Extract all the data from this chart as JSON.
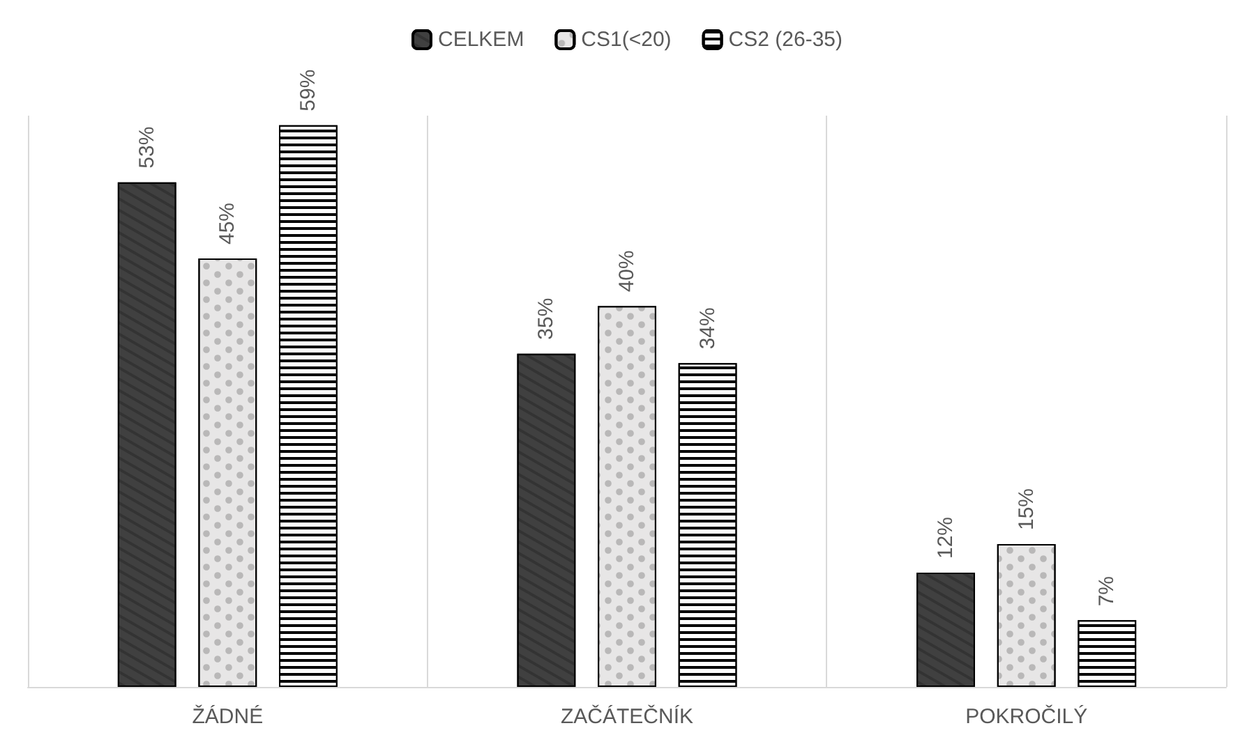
{
  "chart_data": {
    "type": "bar",
    "categories": [
      "ŽÁDNÉ",
      "ZAČÁTEČNÍK",
      "POKROČILÝ"
    ],
    "series": [
      {
        "name": "CELKEM",
        "color": "#404040",
        "values": [
          53,
          35,
          12
        ],
        "value_labels": [
          "53%",
          "35%",
          "12%"
        ]
      },
      {
        "name": "CS1(<20)",
        "color": "#e7e6e6",
        "values": [
          45,
          40,
          15
        ],
        "value_labels": [
          "45%",
          "40%",
          "15%"
        ]
      },
      {
        "name": "CS2 (26-35)",
        "color": "#ffffff",
        "values": [
          59,
          34,
          7
        ],
        "value_labels": [
          "59%",
          "34%",
          "7%"
        ]
      }
    ],
    "grid": "x",
    "legend": "top"
  }
}
